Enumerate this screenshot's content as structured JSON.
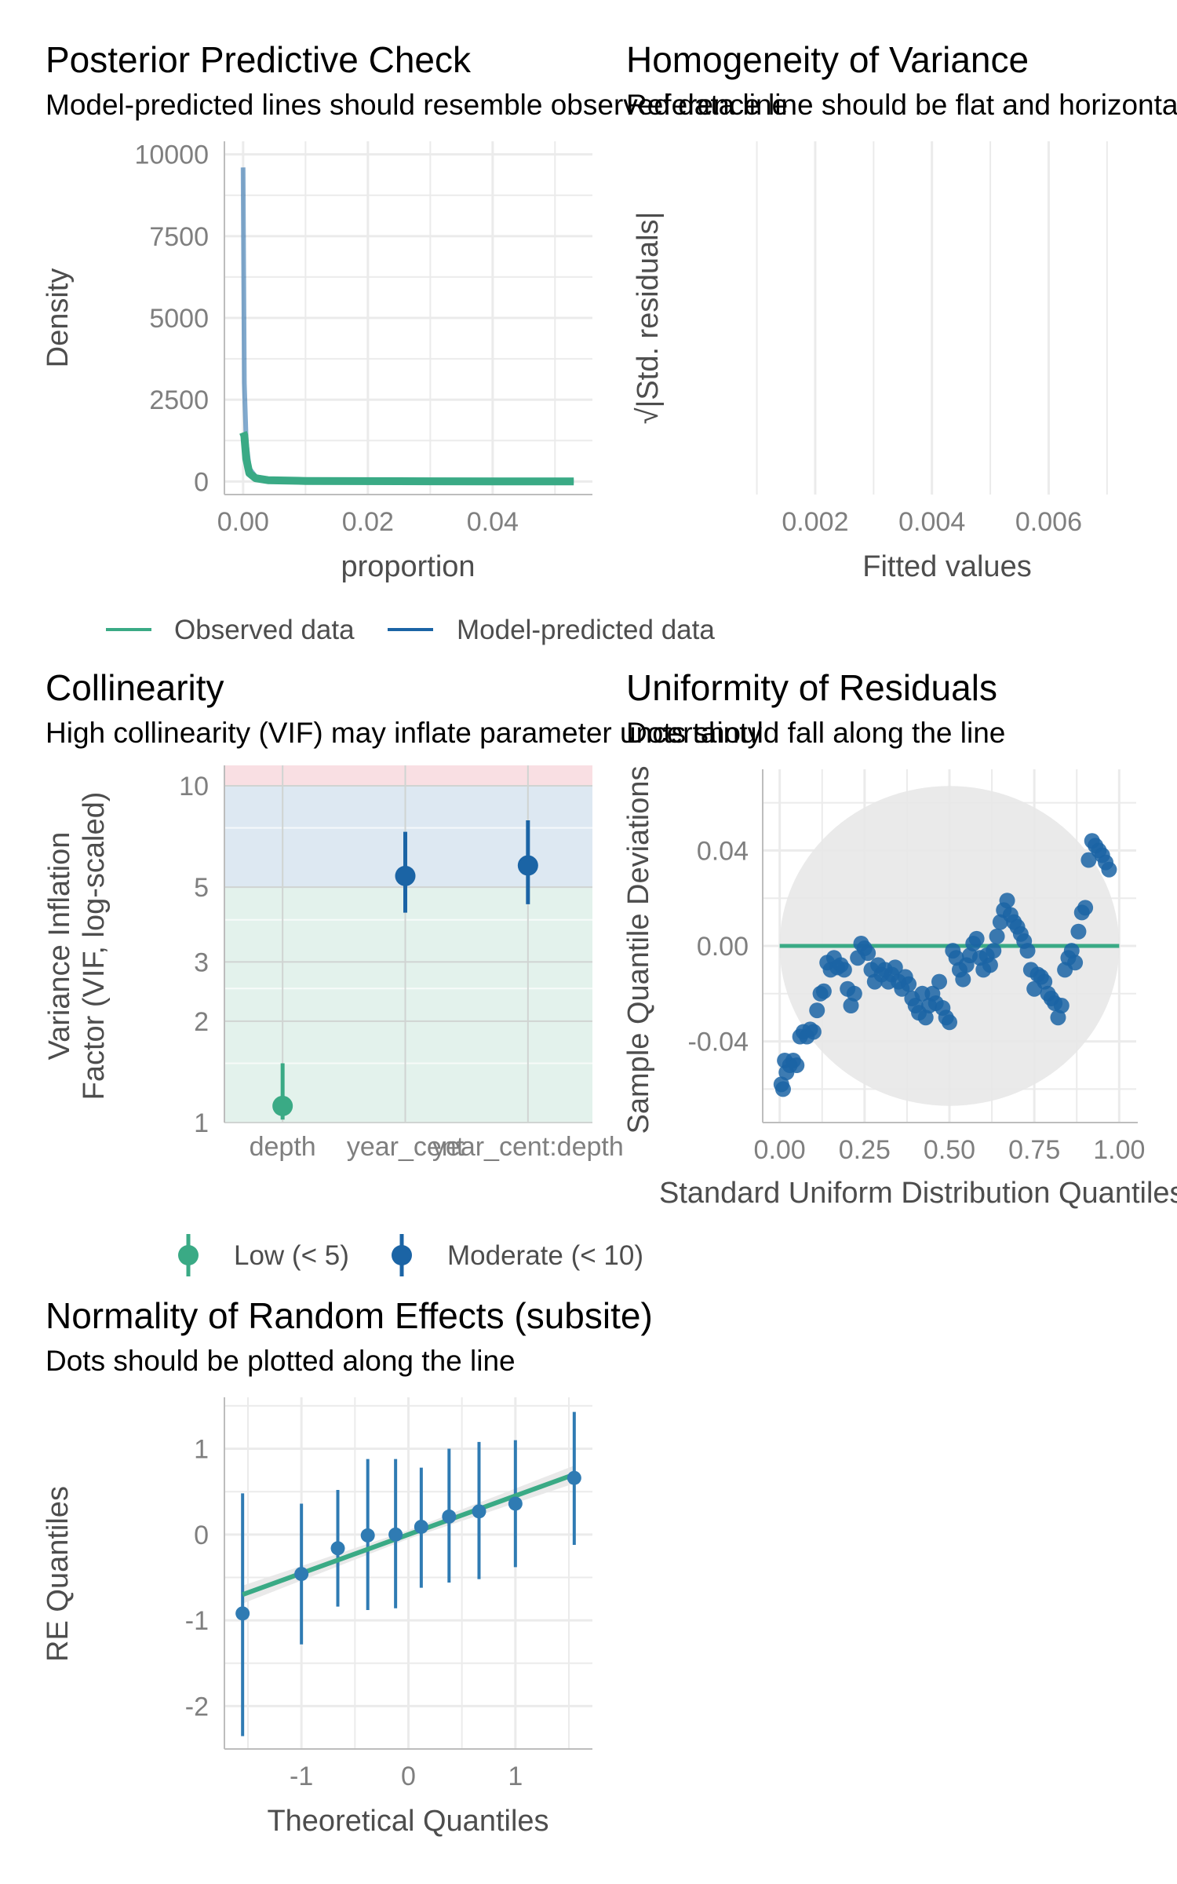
{
  "colors": {
    "observed": "#3aaa85",
    "predicted": "#1b64a5",
    "grid": "#ebebeb",
    "zone_low": "#e3f2ec",
    "zone_moderate": "#dde8f2",
    "zone_high": "#f9dfe3",
    "band": "#e8e8e8"
  },
  "legends": {
    "ppc": [
      {
        "label": "Observed data",
        "color": "#3aaa85"
      },
      {
        "label": "Model-predicted data",
        "color": "#1b64a5"
      }
    ],
    "vif": [
      {
        "label": "Low (< 5)",
        "color": "#3aaa85"
      },
      {
        "label": "Moderate (< 10)",
        "color": "#1b64a5"
      }
    ]
  },
  "chart_data": [
    {
      "id": "ppc",
      "type": "line",
      "title": "Posterior Predictive Check",
      "subtitle": "Model-predicted lines should resemble observed data line",
      "xlabel": "proportion",
      "ylabel": "Density",
      "xlim": [
        -0.003,
        0.056
      ],
      "ylim": [
        -400,
        10400
      ],
      "x_ticks": [
        0,
        0.02,
        0.04
      ],
      "x_tick_labels": [
        "0.00",
        "0.02",
        "0.04"
      ],
      "y_ticks": [
        0,
        2500,
        5000,
        7500,
        10000
      ],
      "y_tick_labels": [
        "0",
        "2500",
        "5000",
        "7500",
        "10000"
      ],
      "series": [
        {
          "name": "Model-predicted data",
          "x": [
            0,
            0.0002,
            0.0005,
            0.001,
            0.002,
            0.004,
            0.01,
            0.03,
            0.053
          ],
          "y": [
            9600,
            3000,
            1200,
            400,
            150,
            60,
            20,
            5,
            0
          ]
        },
        {
          "name": "Observed data",
          "x": [
            0,
            0.0002,
            0.0005,
            0.001,
            0.002,
            0.004,
            0.01,
            0.03,
            0.053
          ],
          "y": [
            1500,
            1400,
            700,
            250,
            100,
            40,
            15,
            5,
            0
          ]
        }
      ],
      "grid": true
    },
    {
      "id": "hov",
      "type": "scatter",
      "title": "Homogeneity of Variance",
      "subtitle": "Reference line should be flat and horizontal",
      "xlabel": "Fitted values",
      "ylabel": "√|Std. residuals|",
      "xlim": [
        0.0011,
        0.0075
      ],
      "x_ticks": [
        0.002,
        0.004,
        0.006
      ],
      "x_tick_labels": [
        "0.002",
        "0.004",
        "0.006"
      ],
      "x_minor": [
        0.001,
        0.003,
        0.005,
        0.007
      ],
      "series": [],
      "grid": true
    },
    {
      "id": "vif",
      "type": "scatter",
      "title": "Collinearity",
      "subtitle": "High collinearity (VIF) may inflate parameter uncertainty",
      "xlabel": "",
      "ylabel": "Variance Inflation Factor (VIF, log-scaled)",
      "ylabel_lines": [
        "Variance Inflation",
        "Factor (VIF, log-scaled)"
      ],
      "y_scale": "log",
      "ylim": [
        1,
        11.5
      ],
      "y_ticks": [
        1,
        2,
        3,
        5,
        10
      ],
      "y_tick_labels": [
        "1",
        "2",
        "3",
        "5",
        "10"
      ],
      "categories": [
        "depth",
        "year_cent",
        "year_cent:depth"
      ],
      "values": [
        1.12,
        5.4,
        5.8
      ],
      "ci_low": [
        1.02,
        4.2,
        4.45
      ],
      "ci_high": [
        1.5,
        7.3,
        7.9
      ],
      "point_group": [
        "Low (< 5)",
        "Moderate (< 10)",
        "Moderate (< 10)"
      ],
      "zones": [
        {
          "label": "Low",
          "from": 1,
          "to": 5
        },
        {
          "label": "Moderate",
          "from": 5,
          "to": 10
        },
        {
          "label": "High",
          "from": 10,
          "to": 11.5
        }
      ],
      "grid": true
    },
    {
      "id": "qq",
      "type": "scatter",
      "title": "Uniformity of Residuals",
      "subtitle": "Dots should fall along the line",
      "xlabel": "Standard Uniform Distribution Quantiles",
      "ylabel": "Sample Quantile Deviations",
      "xlim": [
        -0.05,
        1.05
      ],
      "ylim": [
        -0.074,
        0.074
      ],
      "x_ticks": [
        0,
        0.25,
        0.5,
        0.75,
        1
      ],
      "x_tick_labels": [
        "0.00",
        "0.25",
        "0.50",
        "0.75",
        "1.00"
      ],
      "y_ticks": [
        -0.04,
        0,
        0.04
      ],
      "y_tick_labels": [
        "-0.04",
        "0.00",
        "0.04"
      ],
      "reference_line": {
        "y": 0
      },
      "band_radius": 0.067,
      "points": [
        [
          0.005,
          -0.058
        ],
        [
          0.01,
          -0.06
        ],
        [
          0.015,
          -0.048
        ],
        [
          0.02,
          -0.053
        ],
        [
          0.03,
          -0.05
        ],
        [
          0.04,
          -0.048
        ],
        [
          0.05,
          -0.05
        ],
        [
          0.06,
          -0.038
        ],
        [
          0.07,
          -0.036
        ],
        [
          0.08,
          -0.038
        ],
        [
          0.09,
          -0.035
        ],
        [
          0.1,
          -0.036
        ],
        [
          0.11,
          -0.027
        ],
        [
          0.12,
          -0.02
        ],
        [
          0.13,
          -0.019
        ],
        [
          0.14,
          -0.007
        ],
        [
          0.15,
          -0.01
        ],
        [
          0.16,
          -0.005
        ],
        [
          0.17,
          -0.009
        ],
        [
          0.18,
          -0.008
        ],
        [
          0.19,
          -0.01
        ],
        [
          0.2,
          -0.018
        ],
        [
          0.21,
          -0.025
        ],
        [
          0.22,
          -0.02
        ],
        [
          0.23,
          -0.005
        ],
        [
          0.24,
          0.001
        ],
        [
          0.25,
          -0.001
        ],
        [
          0.26,
          -0.003
        ],
        [
          0.27,
          -0.01
        ],
        [
          0.28,
          -0.015
        ],
        [
          0.29,
          -0.008
        ],
        [
          0.3,
          -0.012
        ],
        [
          0.31,
          -0.01
        ],
        [
          0.32,
          -0.015
        ],
        [
          0.33,
          -0.012
        ],
        [
          0.34,
          -0.009
        ],
        [
          0.35,
          -0.015
        ],
        [
          0.36,
          -0.018
        ],
        [
          0.37,
          -0.013
        ],
        [
          0.38,
          -0.016
        ],
        [
          0.39,
          -0.022
        ],
        [
          0.4,
          -0.025
        ],
        [
          0.41,
          -0.028
        ],
        [
          0.42,
          -0.02
        ],
        [
          0.43,
          -0.03
        ],
        [
          0.44,
          -0.025
        ],
        [
          0.45,
          -0.02
        ],
        [
          0.46,
          -0.024
        ],
        [
          0.47,
          -0.015
        ],
        [
          0.48,
          -0.026
        ],
        [
          0.49,
          -0.03
        ],
        [
          0.5,
          -0.032
        ],
        [
          0.51,
          -0.002
        ],
        [
          0.52,
          -0.005
        ],
        [
          0.53,
          -0.01
        ],
        [
          0.54,
          -0.014
        ],
        [
          0.55,
          -0.008
        ],
        [
          0.56,
          -0.004
        ],
        [
          0.57,
          0.001
        ],
        [
          0.58,
          0.003
        ],
        [
          0.59,
          -0.005
        ],
        [
          0.6,
          -0.01
        ],
        [
          0.61,
          -0.004
        ],
        [
          0.62,
          -0.008
        ],
        [
          0.63,
          -0.002
        ],
        [
          0.64,
          0.004
        ],
        [
          0.65,
          0.01
        ],
        [
          0.66,
          0.015
        ],
        [
          0.67,
          0.019
        ],
        [
          0.68,
          0.013
        ],
        [
          0.69,
          0.01
        ],
        [
          0.7,
          0.008
        ],
        [
          0.71,
          0.005
        ],
        [
          0.72,
          0.002
        ],
        [
          0.73,
          -0.002
        ],
        [
          0.74,
          -0.01
        ],
        [
          0.75,
          -0.018
        ],
        [
          0.76,
          -0.012
        ],
        [
          0.77,
          -0.013
        ],
        [
          0.78,
          -0.015
        ],
        [
          0.79,
          -0.02
        ],
        [
          0.8,
          -0.022
        ],
        [
          0.81,
          -0.024
        ],
        [
          0.82,
          -0.03
        ],
        [
          0.83,
          -0.025
        ],
        [
          0.84,
          -0.01
        ],
        [
          0.85,
          -0.005
        ],
        [
          0.86,
          -0.002
        ],
        [
          0.87,
          -0.007
        ],
        [
          0.88,
          0.006
        ],
        [
          0.89,
          0.014
        ],
        [
          0.9,
          0.016
        ],
        [
          0.91,
          0.036
        ],
        [
          0.92,
          0.044
        ],
        [
          0.93,
          0.042
        ],
        [
          0.94,
          0.04
        ],
        [
          0.95,
          0.038
        ],
        [
          0.96,
          0.035
        ],
        [
          0.97,
          0.032
        ]
      ],
      "grid": true
    },
    {
      "id": "re",
      "type": "scatter",
      "title": "Normality of Random Effects (subsite)",
      "subtitle": "Dots should be plotted along the line",
      "xlabel": "Theoretical Quantiles",
      "ylabel": "RE Quantiles",
      "xlim": [
        -1.72,
        1.72
      ],
      "ylim": [
        -2.5,
        1.6
      ],
      "x_ticks": [
        -1,
        0,
        1
      ],
      "x_tick_labels": [
        "-1",
        "0",
        "1"
      ],
      "y_ticks": [
        -2,
        -1,
        0,
        1
      ],
      "y_tick_labels": [
        "-2",
        "-1",
        "0",
        "1"
      ],
      "line": {
        "x": [
          -1.55,
          1.55
        ],
        "y": [
          -0.7,
          0.7
        ]
      },
      "points": [
        {
          "x": -1.55,
          "y": -0.92,
          "lo": -2.35,
          "hi": 0.48
        },
        {
          "x": -1.0,
          "y": -0.46,
          "lo": -1.28,
          "hi": 0.36
        },
        {
          "x": -0.66,
          "y": -0.16,
          "lo": -0.84,
          "hi": 0.52
        },
        {
          "x": -0.38,
          "y": -0.01,
          "lo": -0.88,
          "hi": 0.88
        },
        {
          "x": -0.12,
          "y": 0.0,
          "lo": -0.86,
          "hi": 0.88
        },
        {
          "x": 0.12,
          "y": 0.09,
          "lo": -0.62,
          "hi": 0.78
        },
        {
          "x": 0.38,
          "y": 0.21,
          "lo": -0.56,
          "hi": 1.0
        },
        {
          "x": 0.66,
          "y": 0.27,
          "lo": -0.52,
          "hi": 1.08
        },
        {
          "x": 1.0,
          "y": 0.36,
          "lo": -0.38,
          "hi": 1.1
        },
        {
          "x": 1.55,
          "y": 0.66,
          "lo": -0.12,
          "hi": 1.43
        }
      ],
      "grid": true
    }
  ]
}
